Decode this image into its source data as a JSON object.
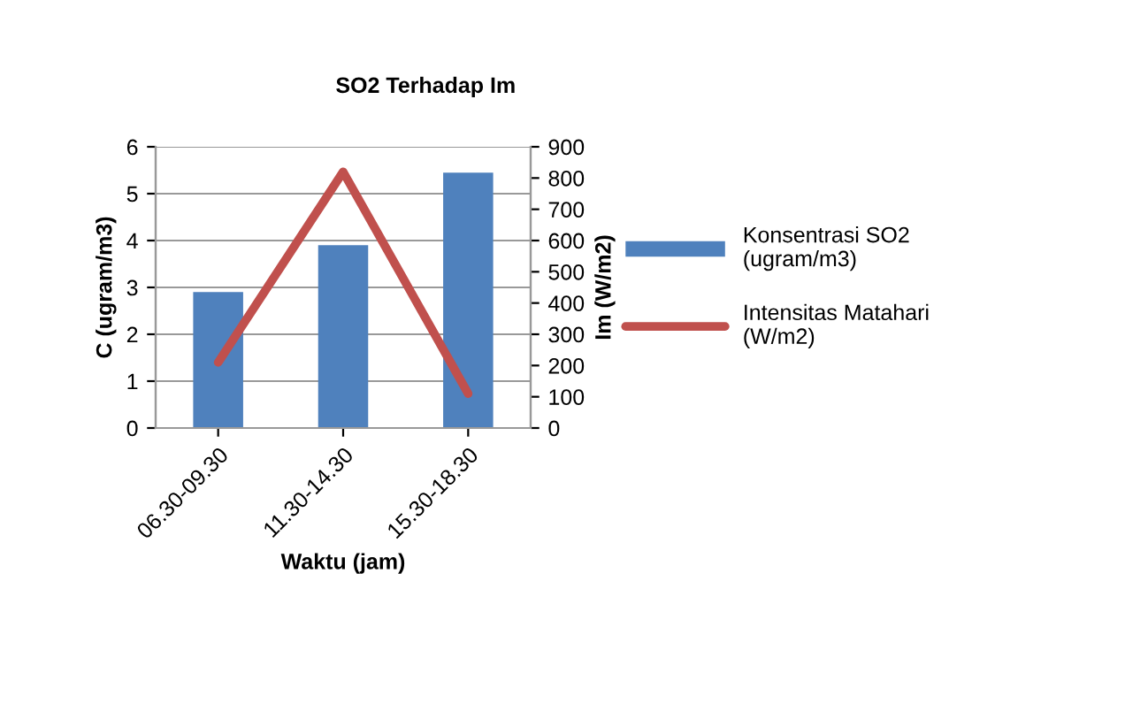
{
  "chart_data": {
    "type": "bar",
    "title": "SO2 Terhadap Im",
    "xlabel": "Waktu (jam)",
    "ylabel": "C (ugram/m3)",
    "y2label": "Im (W/m2)",
    "categories": [
      "06.30-09.30",
      "11.30-14.30",
      "15.30-18.30"
    ],
    "series": [
      {
        "name": "Konsentrasi SO2\n(ugram/m3)",
        "color": "#4f81bd",
        "values": [
          2.9,
          3.9,
          5.45
        ]
      },
      {
        "name": "Intensitas Matahari\n(W/m2)",
        "type": "line",
        "axis": "y2",
        "color": "#c0504d",
        "values": [
          210,
          820,
          110
        ]
      }
    ],
    "ylim": [
      0,
      6
    ],
    "yticks": [
      0,
      1,
      2,
      3,
      4,
      5,
      6
    ],
    "y2lim": [
      0,
      900
    ],
    "y2ticks": [
      0,
      100,
      200,
      300,
      400,
      500,
      600,
      700,
      800,
      900
    ],
    "grid": "y",
    "legend": "right"
  }
}
